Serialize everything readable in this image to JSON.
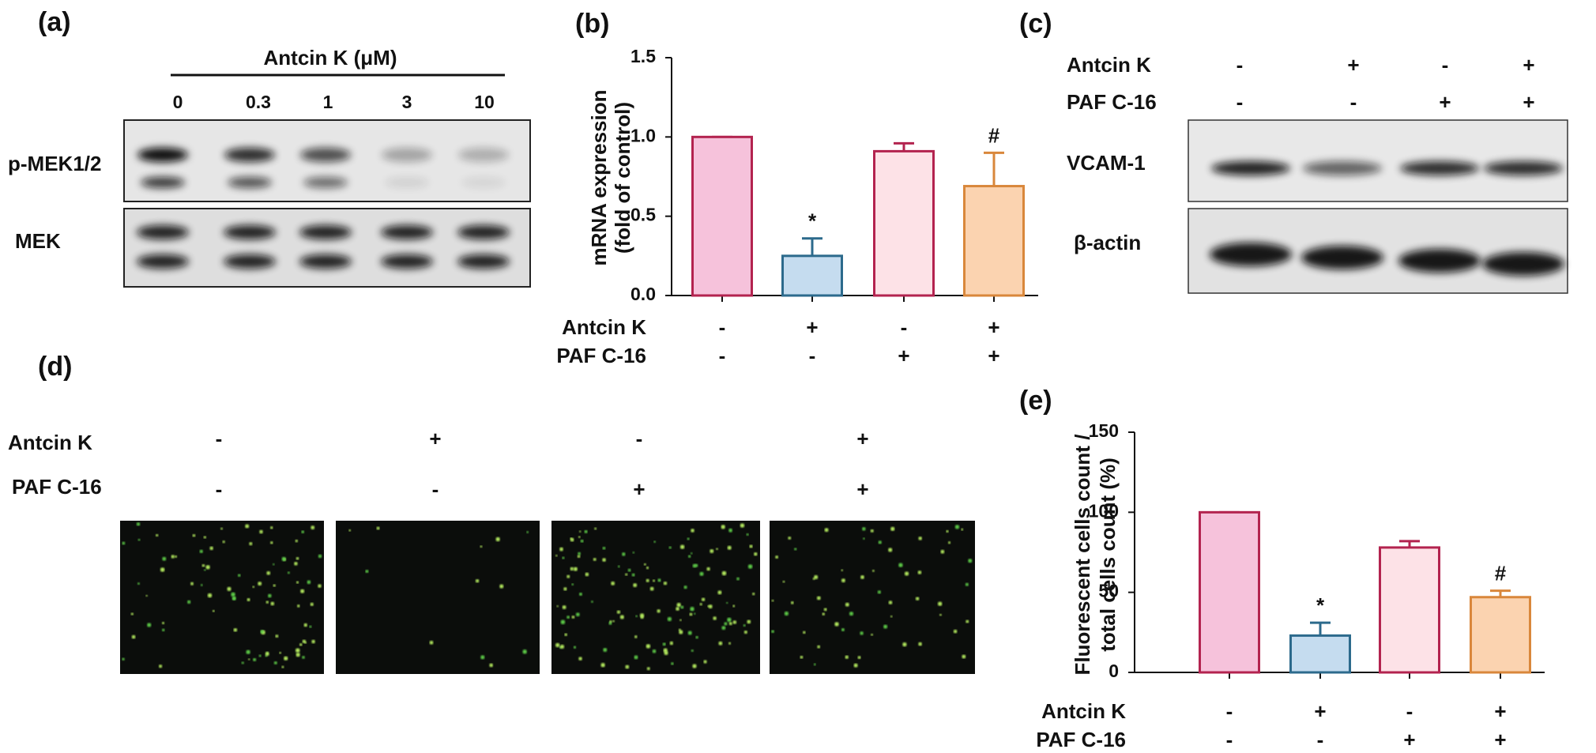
{
  "panels": {
    "a": {
      "label": "(a)",
      "header": "Antcin K (μM)",
      "doses": [
        "0",
        "0.3",
        "1",
        "3",
        "10"
      ],
      "rows": [
        "p-MEK1/2",
        "MEK"
      ]
    },
    "c": {
      "label": "(c)",
      "groups": [
        {
          "name": "Antcin K",
          "labels": [
            "-",
            "+",
            "-",
            "+"
          ]
        },
        {
          "name": "PAF C-16",
          "labels": [
            "-",
            "-",
            "+",
            "+"
          ]
        }
      ],
      "rows": [
        "VCAM-1",
        "β-actin"
      ]
    },
    "d": {
      "label": "(d)",
      "groups": [
        {
          "name": "Antcin K",
          "labels": [
            "-",
            "+",
            "-",
            "+"
          ]
        },
        {
          "name": "PAF C-16",
          "labels": [
            "-",
            "-",
            "+",
            "+"
          ]
        }
      ]
    }
  },
  "chart_data": [
    {
      "type": "bar",
      "title": "(b)",
      "ylabel": [
        "mRNA expression",
        "(fold of control)"
      ],
      "values": [
        1.0,
        0.25,
        0.91,
        0.69
      ],
      "errors": [
        0,
        0.11,
        0.05,
        0.21
      ],
      "colors": [
        "#f6c2db",
        "#c5dcef",
        "#fde2e7",
        "#fbd3b0"
      ],
      "edge_colors": [
        "#b3234f",
        "#2c6a8c",
        "#b3234f",
        "#d9873b"
      ],
      "annotations": [
        null,
        "*",
        null,
        "#"
      ],
      "groups": [
        {
          "name": "Antcin K",
          "labels": [
            "-",
            "+",
            "-",
            "+"
          ]
        },
        {
          "name": "PAF C-16",
          "labels": [
            "-",
            "-",
            "+",
            "+"
          ]
        }
      ],
      "ylim": [
        0,
        1.5
      ],
      "yticks": [
        {
          "value": 0,
          "label": "0.0"
        },
        {
          "value": 0.5,
          "label": "0.5"
        },
        {
          "value": 1,
          "label": "1.0"
        },
        {
          "value": 1.5,
          "label": "1.5"
        }
      ]
    },
    {
      "type": "bar",
      "title": "(e)",
      "ylabel": [
        "Fluorescent cells count /",
        "total cells count  (%)"
      ],
      "values": [
        100,
        23,
        78,
        47
      ],
      "errors": [
        0,
        8,
        4,
        4
      ],
      "colors": [
        "#f6c2db",
        "#c5dcef",
        "#fde2e7",
        "#fbd3b0"
      ],
      "edge_colors": [
        "#b3234f",
        "#2c6a8c",
        "#b3234f",
        "#d9873b"
      ],
      "annotations": [
        null,
        "*",
        null,
        "#"
      ],
      "groups": [
        {
          "name": "Antcin K",
          "labels": [
            "-",
            "+",
            "-",
            "+"
          ]
        },
        {
          "name": "PAF C-16",
          "labels": [
            "-",
            "-",
            "+",
            "+"
          ]
        }
      ],
      "ylim": [
        0,
        150
      ],
      "yticks": [
        0,
        50,
        100,
        150
      ]
    }
  ]
}
